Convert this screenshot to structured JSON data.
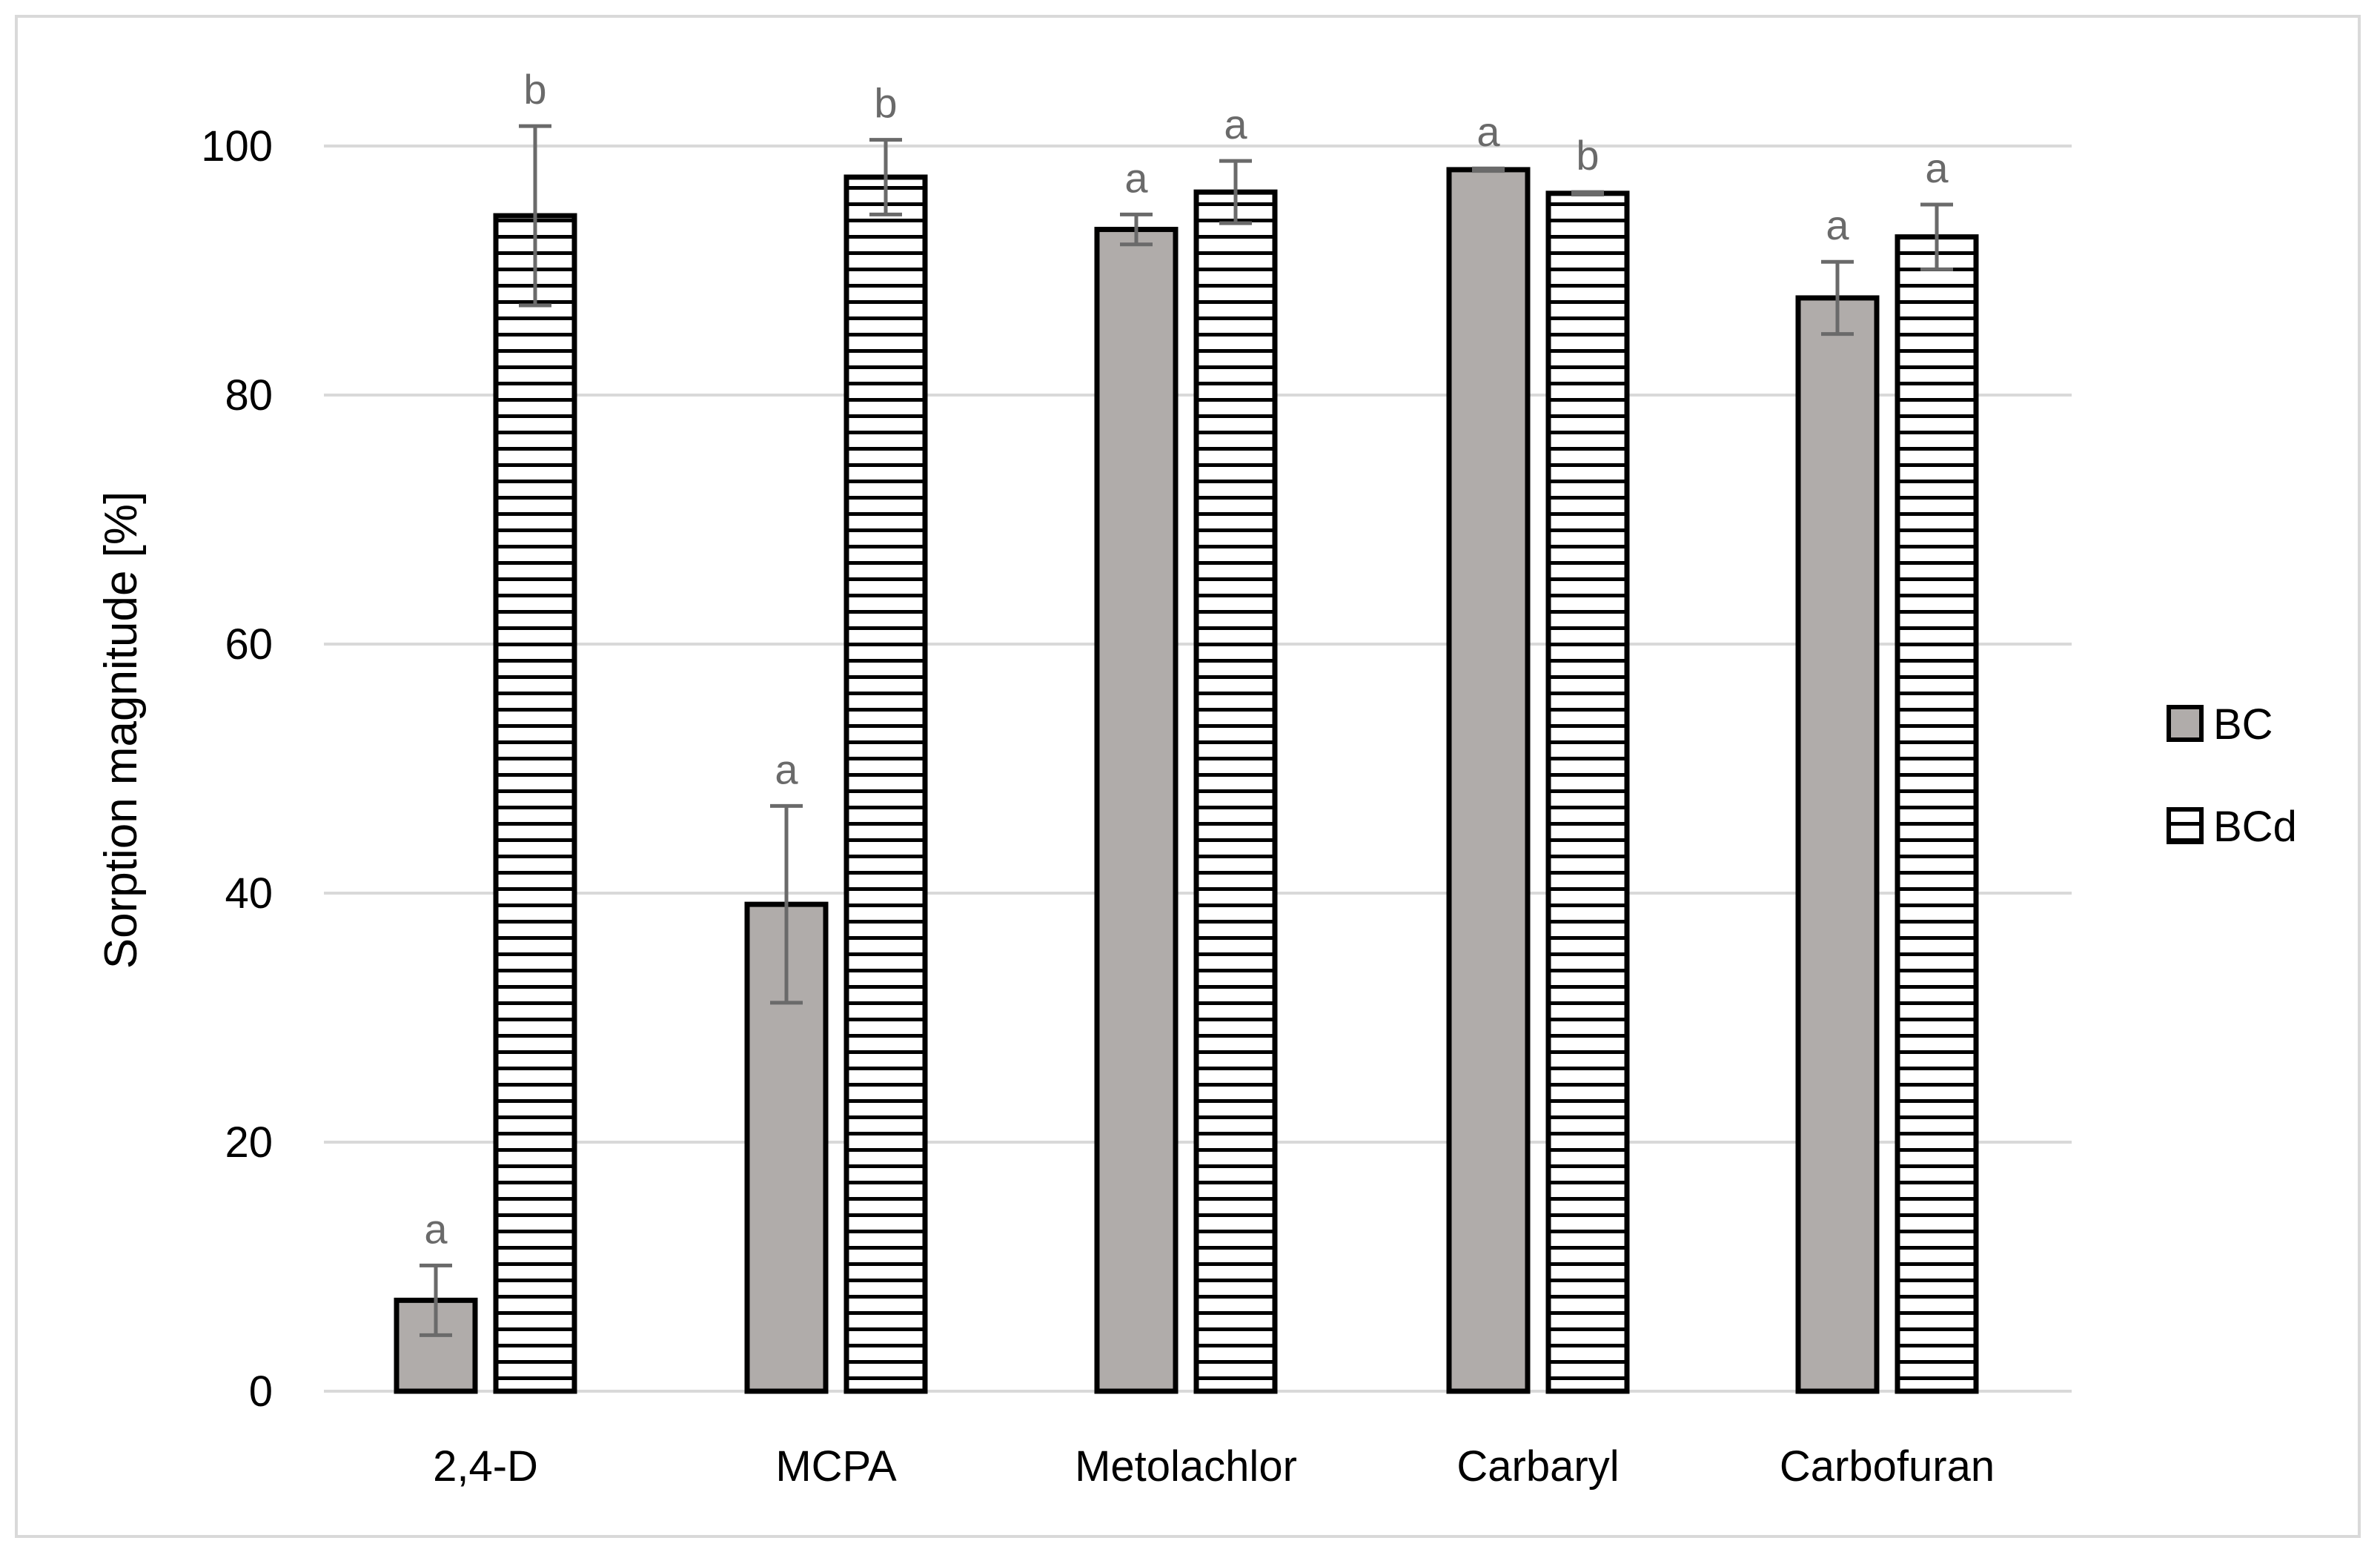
{
  "chart_data": {
    "type": "bar",
    "title": "",
    "xlabel": "",
    "ylabel": "Sorption magnitude [%]",
    "ylim": [
      0,
      100
    ],
    "yticks": [
      0,
      20,
      40,
      60,
      80,
      100
    ],
    "grid": true,
    "legend_position": "right",
    "categories": [
      "2,4-D",
      "MCPA",
      "Metolachlor",
      "Carbaryl",
      "Carbofuran"
    ],
    "series": [
      {
        "name": "BC",
        "fill": "#b0acaa",
        "pattern": "solid",
        "values": [
          7.3,
          39.1,
          93.3,
          98.1,
          87.8
        ],
        "errors": [
          2.8,
          7.9,
          1.2,
          0.1,
          2.9
        ],
        "letters": [
          "a",
          "a",
          "a",
          "a",
          "a"
        ]
      },
      {
        "name": "BCd",
        "fill": "#ffffff",
        "pattern": "horizontal-stripes",
        "values": [
          94.4,
          97.5,
          96.3,
          96.2,
          92.7
        ],
        "errors": [
          7.2,
          3.0,
          2.5,
          0.1,
          2.6
        ],
        "letters": [
          "b",
          "b",
          "a",
          "b",
          "a"
        ]
      }
    ]
  },
  "colors": {
    "grid": "#d9d9d9",
    "bar_outline": "#000000",
    "error_bar": "#6a6a6a",
    "stripe": "#000000"
  }
}
